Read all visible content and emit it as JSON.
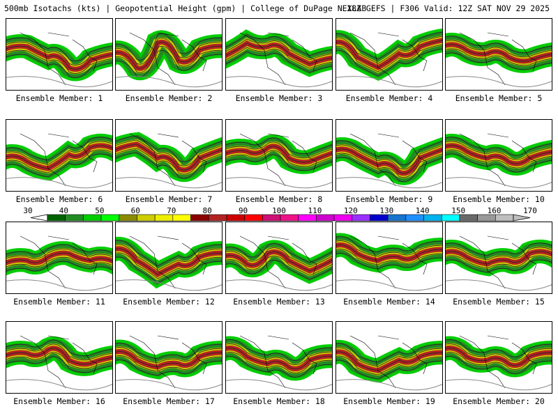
{
  "header": {
    "left": "500mb Isotachs (kts) | Geopotential Height (gpm) | College of DuPage NEXLAB",
    "right": "18Z GEFS | F306 Valid: 12Z SAT NOV 29 2025"
  },
  "panels": [
    {
      "label": "Ensemble Member: 1"
    },
    {
      "label": "Ensemble Member: 2"
    },
    {
      "label": "Ensemble Member: 3"
    },
    {
      "label": "Ensemble Member: 4"
    },
    {
      "label": "Ensemble Member: 5"
    },
    {
      "label": "Ensemble Member: 6"
    },
    {
      "label": "Ensemble Member: 7"
    },
    {
      "label": "Ensemble Member: 8"
    },
    {
      "label": "Ensemble Member: 9"
    },
    {
      "label": "Ensemble Member: 10"
    },
    {
      "label": "Ensemble Member: 11"
    },
    {
      "label": "Ensemble Member: 12"
    },
    {
      "label": "Ensemble Member: 13"
    },
    {
      "label": "Ensemble Member: 14"
    },
    {
      "label": "Ensemble Member: 15"
    },
    {
      "label": "Ensemble Member: 16"
    },
    {
      "label": "Ensemble Member: 17"
    },
    {
      "label": "Ensemble Member: 18"
    },
    {
      "label": "Ensemble Member: 19"
    },
    {
      "label": "Ensemble Member: 20"
    }
  ],
  "colorbar": {
    "ticks": [
      "30",
      "40",
      "50",
      "60",
      "70",
      "80",
      "90",
      "100",
      "110",
      "120",
      "130",
      "140",
      "150",
      "160",
      "170"
    ],
    "colors": [
      "#006400",
      "#228b22",
      "#00cd00",
      "#00ff00",
      "#8b8b00",
      "#cdcd00",
      "#eeee00",
      "#ffff00",
      "#8b0000",
      "#b22222",
      "#cd0000",
      "#ff0000",
      "#cd1076",
      "#ee1289",
      "#ff00ff",
      "#cd00cd",
      "#ee00ee",
      "#9b30ff",
      "#0000cd",
      "#1874cd",
      "#1e90ff",
      "#00b2ee",
      "#00ffff",
      "#696969",
      "#999999",
      "#bfbfbf"
    ]
  }
}
